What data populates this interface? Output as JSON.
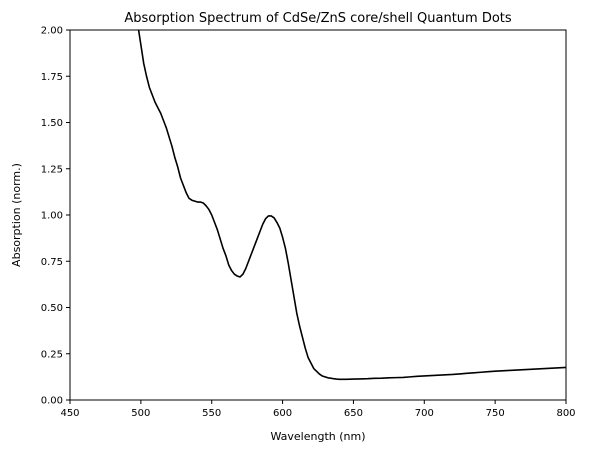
{
  "chart_data": {
    "type": "line",
    "title": "Absorption Spectrum of CdSe/ZnS core/shell Quantum Dots",
    "xlabel": "Wavelength (nm)",
    "ylabel": "Absorption (norm.)",
    "xlim": [
      450,
      800
    ],
    "ylim": [
      0,
      2.0
    ],
    "xticks": [
      450,
      500,
      550,
      600,
      650,
      700,
      750,
      800
    ],
    "yticks": [
      0.0,
      0.25,
      0.5,
      0.75,
      1.0,
      1.25,
      1.5,
      1.75,
      2.0
    ],
    "xtick_labels": [
      "450",
      "500",
      "550",
      "600",
      "650",
      "700",
      "750",
      "800"
    ],
    "ytick_labels": [
      "0.00",
      "0.25",
      "0.50",
      "0.75",
      "1.00",
      "1.25",
      "1.50",
      "1.75",
      "2.00"
    ],
    "grid": false,
    "series": [
      {
        "color": "#000000",
        "x": [
          498,
          500,
          502,
          504,
          506,
          508,
          510,
          512,
          514,
          516,
          518,
          520,
          522,
          524,
          526,
          528,
          530,
          532,
          534,
          536,
          538,
          540,
          542,
          544,
          546,
          548,
          550,
          552,
          554,
          556,
          558,
          560,
          562,
          564,
          566,
          568,
          570,
          572,
          574,
          576,
          578,
          580,
          582,
          584,
          586,
          588,
          590,
          592,
          594,
          596,
          598,
          600,
          602,
          604,
          606,
          608,
          610,
          612,
          614,
          616,
          618,
          620,
          622,
          624,
          626,
          628,
          630,
          632,
          634,
          636,
          638,
          640,
          645,
          650,
          655,
          660,
          665,
          670,
          675,
          680,
          685,
          690,
          695,
          700,
          705,
          710,
          715,
          720,
          725,
          730,
          735,
          740,
          745,
          750,
          755,
          760,
          765,
          770,
          775,
          780,
          785,
          790,
          795,
          800
        ],
        "y": [
          2.02,
          1.92,
          1.82,
          1.75,
          1.69,
          1.65,
          1.61,
          1.58,
          1.55,
          1.51,
          1.47,
          1.42,
          1.37,
          1.31,
          1.26,
          1.2,
          1.16,
          1.12,
          1.09,
          1.08,
          1.075,
          1.07,
          1.07,
          1.065,
          1.05,
          1.03,
          1.0,
          0.96,
          0.92,
          0.87,
          0.82,
          0.78,
          0.73,
          0.7,
          0.68,
          0.67,
          0.665,
          0.68,
          0.71,
          0.75,
          0.79,
          0.83,
          0.87,
          0.91,
          0.95,
          0.98,
          0.995,
          0.995,
          0.985,
          0.96,
          0.93,
          0.88,
          0.82,
          0.74,
          0.65,
          0.56,
          0.47,
          0.4,
          0.34,
          0.28,
          0.23,
          0.2,
          0.17,
          0.155,
          0.14,
          0.13,
          0.125,
          0.12,
          0.118,
          0.115,
          0.113,
          0.112,
          0.112,
          0.113,
          0.114,
          0.115,
          0.117,
          0.118,
          0.12,
          0.121,
          0.122,
          0.125,
          0.128,
          0.13,
          0.132,
          0.134,
          0.136,
          0.138,
          0.141,
          0.144,
          0.147,
          0.15,
          0.153,
          0.156,
          0.158,
          0.16,
          0.162,
          0.164,
          0.166,
          0.168,
          0.17,
          0.172,
          0.174,
          0.176
        ]
      }
    ]
  }
}
